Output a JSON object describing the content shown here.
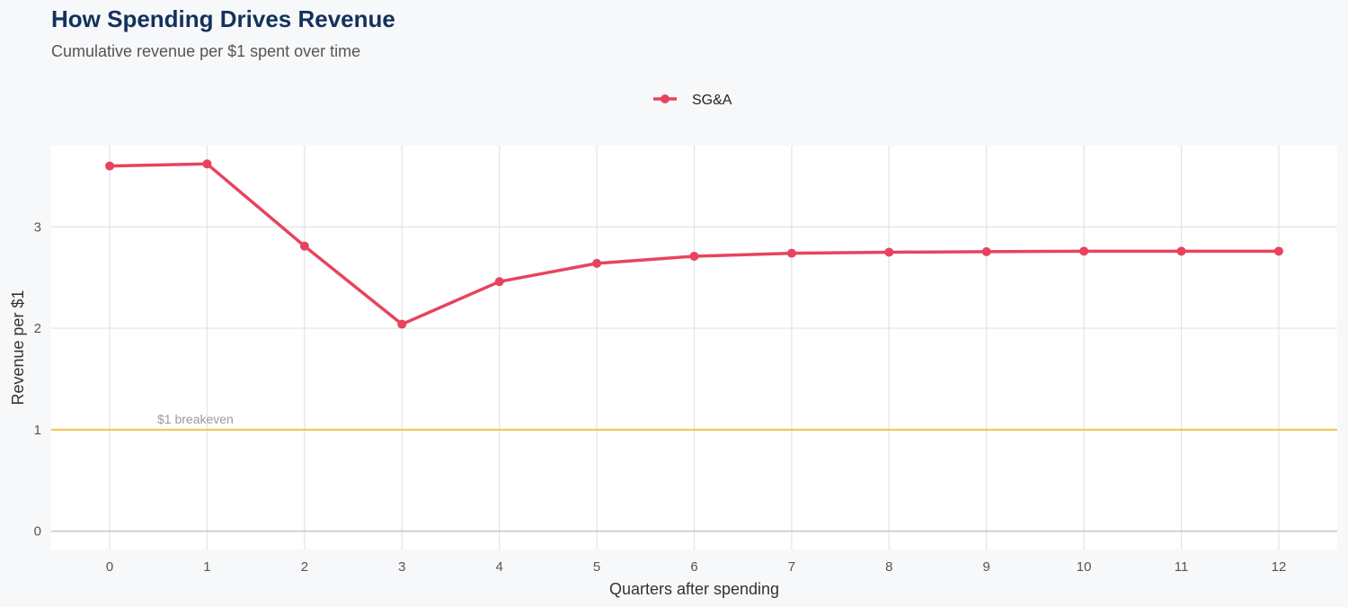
{
  "chart_data": {
    "type": "line",
    "title": "How Spending Drives Revenue",
    "subtitle": "Cumulative revenue per $1 spent over time",
    "xlabel": "Quarters after spending",
    "ylabel": "Revenue per $1",
    "x": [
      0,
      1,
      2,
      3,
      4,
      5,
      6,
      7,
      8,
      9,
      10,
      11,
      12
    ],
    "xlim": [
      -0.6,
      12.6
    ],
    "ylim": [
      -0.18,
      3.8
    ],
    "yticks": [
      0,
      1,
      2,
      3
    ],
    "grid": true,
    "legend_position": "top",
    "series": [
      {
        "name": "SG&A",
        "color": "#e8435e",
        "values": [
          3.6,
          3.62,
          2.81,
          2.04,
          2.46,
          2.64,
          2.71,
          2.74,
          2.75,
          2.755,
          2.76,
          2.76,
          2.76
        ]
      }
    ],
    "reference_line": {
      "y": 1,
      "label": "$1 breakeven",
      "color": "#f5c242"
    }
  }
}
